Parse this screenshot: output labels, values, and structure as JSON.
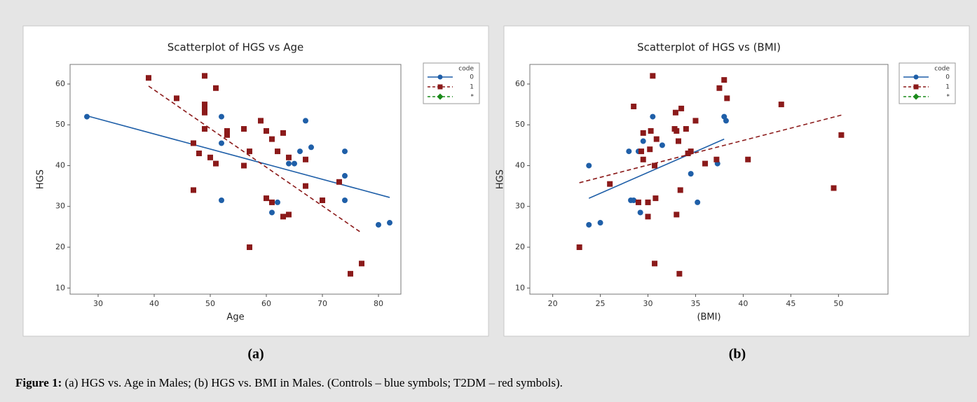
{
  "chart_data": [
    {
      "type": "scatter",
      "title": "Scatterplot of HGS vs Age",
      "x_label": "Age",
      "y_label": "HGS",
      "xlim": [
        25,
        84
      ],
      "xticks": [
        30,
        40,
        50,
        60,
        70,
        80
      ],
      "ylim": [
        8.5,
        64.8
      ],
      "yticks": [
        10,
        20,
        30,
        40,
        50,
        60
      ],
      "legend_title": "code",
      "legend": "right",
      "series": [
        {
          "name": "0",
          "color": "#1f5fa8",
          "marker": "circle",
          "line_style": "solid",
          "x": [
            28,
            52,
            52,
            52,
            61,
            62,
            64,
            65,
            66,
            67,
            68,
            74,
            74,
            74,
            80,
            82
          ],
          "values": [
            52,
            52,
            45.5,
            31.5,
            28.5,
            31,
            40.5,
            40.5,
            43.5,
            51,
            44.5,
            43.5,
            37.5,
            31.5,
            25.5,
            26
          ],
          "fit_x": [
            28,
            82
          ],
          "fit_y": [
            52.2,
            32.2
          ]
        },
        {
          "name": "1",
          "color": "#8b1a1a",
          "marker": "square",
          "line_style": "dashed",
          "x": [
            39,
            44,
            47,
            47,
            48,
            49,
            49,
            49,
            49,
            49,
            50,
            51,
            51,
            53,
            53,
            56,
            56,
            57,
            57,
            59,
            60,
            60,
            61,
            61,
            62,
            63,
            63,
            64,
            64,
            67,
            67,
            70,
            73,
            75,
            77
          ],
          "values": [
            61.5,
            56.5,
            45.5,
            34,
            43,
            62,
            55,
            54,
            53,
            49,
            42,
            59,
            40.5,
            48.5,
            47.5,
            49,
            40,
            43.5,
            20,
            51,
            48.5,
            32,
            46.5,
            31,
            43.5,
            48,
            27.5,
            42,
            28,
            41.5,
            35,
            31.5,
            36,
            13.5,
            16
          ],
          "fit_x": [
            39,
            77
          ],
          "fit_y": [
            59.5,
            23.5
          ]
        },
        {
          "name": "*",
          "color": "#1a8a1a",
          "marker": "diamond",
          "line_style": "dashed",
          "x": [],
          "values": []
        }
      ]
    },
    {
      "type": "scatter",
      "title": "Scatterplot of HGS vs (BMI)",
      "x_label": "(BMI)",
      "y_label": "HGS",
      "xlim": [
        17.6,
        55.2
      ],
      "xticks": [
        20,
        25,
        30,
        35,
        40,
        45,
        50
      ],
      "ylim": [
        8.5,
        64.8
      ],
      "yticks": [
        10,
        20,
        30,
        40,
        50,
        60
      ],
      "legend_title": "code",
      "legend": "right",
      "series": [
        {
          "name": "0",
          "color": "#1f5fa8",
          "marker": "circle",
          "line_style": "solid",
          "x": [
            23.8,
            23.8,
            25,
            28,
            28.2,
            28.5,
            29,
            29.2,
            29.5,
            30.5,
            31.5,
            34.5,
            35.2,
            37.3,
            38,
            38.2
          ],
          "values": [
            40,
            25.5,
            26,
            43.5,
            31.5,
            31.5,
            43.5,
            28.5,
            46,
            52,
            45,
            38,
            31,
            40.5,
            52,
            51
          ],
          "fit_x": [
            23.8,
            38
          ],
          "fit_y": [
            32,
            46.5
          ]
        },
        {
          "name": "1",
          "color": "#8b1a1a",
          "marker": "square",
          "line_style": "dashed",
          "x": [
            22.8,
            26,
            28.5,
            29,
            29.3,
            29.5,
            29.5,
            30,
            30,
            30.2,
            30.3,
            30.5,
            30.7,
            30.7,
            30.8,
            30.9,
            32.8,
            32.9,
            33,
            33,
            33.2,
            33.3,
            33.4,
            33.5,
            34,
            34.2,
            34.5,
            35,
            36,
            37.2,
            37.5,
            38,
            38.3,
            40.5,
            44,
            49.5,
            50.3
          ],
          "values": [
            20,
            35.5,
            54.5,
            31,
            43.5,
            48,
            41.5,
            31,
            27.5,
            44,
            48.5,
            62,
            40,
            16,
            32,
            46.5,
            49,
            53,
            28,
            48.5,
            46,
            13.5,
            34,
            54,
            49,
            43,
            43.5,
            51,
            40.5,
            41.5,
            59,
            61,
            56.5,
            41.5,
            55,
            34.5,
            47.5
          ],
          "fit_x": [
            22.8,
            50.5
          ],
          "fit_y": [
            35.8,
            52.5
          ]
        },
        {
          "name": "*",
          "color": "#1a8a1a",
          "marker": "diamond",
          "line_style": "dashed",
          "x": [],
          "values": []
        }
      ]
    }
  ],
  "figure": {
    "panel_labels": [
      "(a)",
      "(b)"
    ],
    "caption_label": "Figure 1:",
    "caption": "(a) HGS vs. Age in Males; (b) HGS vs. BMI in Males. (Controls – blue symbols; T2DM – red symbols)."
  }
}
